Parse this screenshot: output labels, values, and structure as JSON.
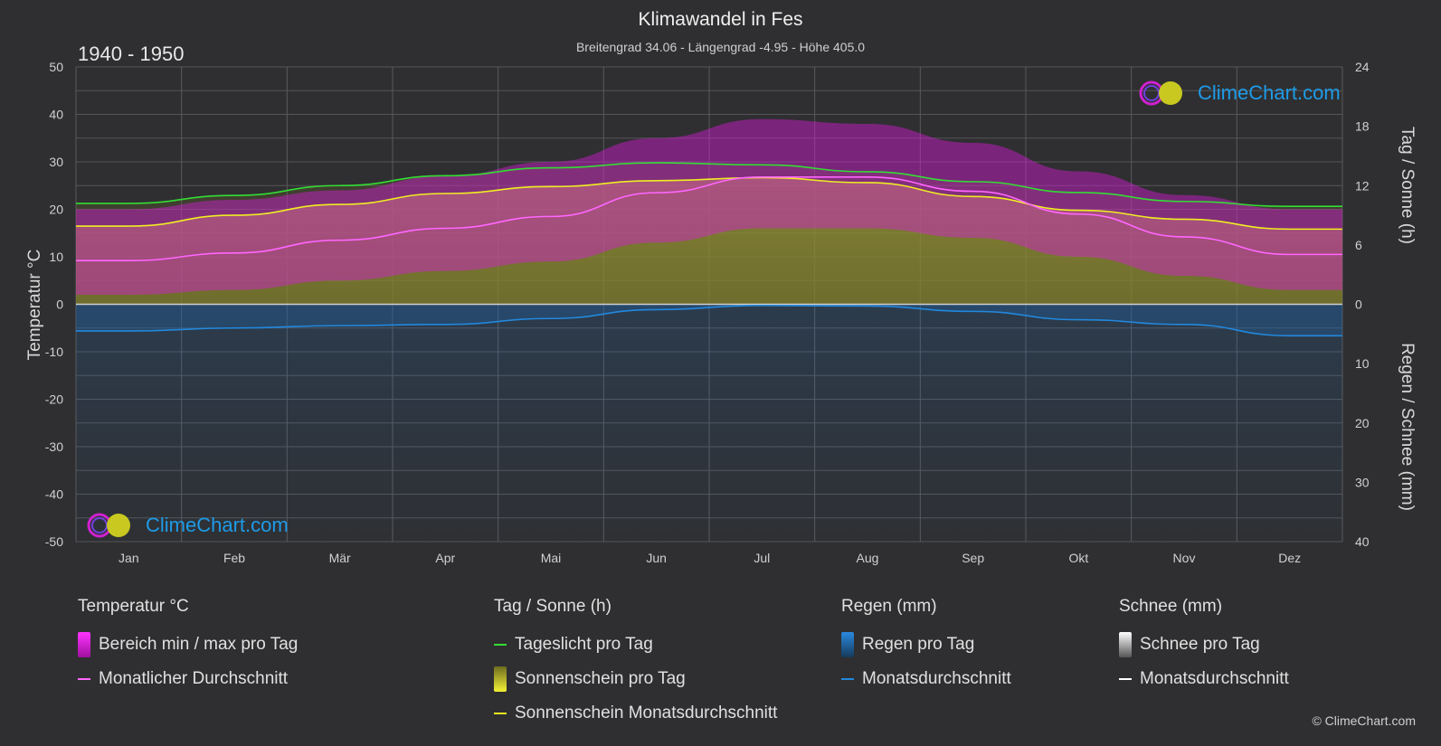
{
  "header": {
    "title": "Klimawandel in Fes",
    "subtitle": "Breitengrad 34.06 - Längengrad -4.95 - Höhe 405.0",
    "period": "1940 - 1950"
  },
  "logo_text": "ClimeChart.com",
  "copyright": "© ClimeChart.com",
  "colors": {
    "background": "#2f2f31",
    "temp_range": "#d81bd8",
    "temp_avg": "#ff66ff",
    "daylight": "#33dd33",
    "sunshine_fill": "#a8a832",
    "sunshine_avg": "#eeee22",
    "rain": "#1f7fd6",
    "rain_avg": "#2288dd",
    "snow": "#dddddd",
    "snow_avg": "#ffffff",
    "logo": "#1e9be8"
  },
  "chart_data": {
    "type": "line",
    "categories": [
      "Jan",
      "Feb",
      "Mär",
      "Apr",
      "Mai",
      "Jun",
      "Jul",
      "Aug",
      "Sep",
      "Okt",
      "Nov",
      "Dez"
    ],
    "left_axis": {
      "label": "Temperatur °C",
      "ylim": [
        -50,
        50
      ],
      "ticks": [
        50,
        40,
        30,
        20,
        10,
        0,
        -10,
        -20,
        -30,
        -40,
        -50
      ]
    },
    "right_axis_top": {
      "label": "Tag / Sonne (h)",
      "ylim": [
        0,
        24
      ],
      "ticks": [
        24,
        18,
        12,
        6,
        0
      ]
    },
    "right_axis_bottom": {
      "label": "Regen / Schnee (mm)",
      "ylim": [
        0,
        40
      ],
      "ticks": [
        10,
        20,
        30,
        40
      ]
    },
    "grid": true,
    "series": [
      {
        "name": "Monatlicher Durchschnitt",
        "unit": "°C",
        "values": [
          9.2,
          10.8,
          13.5,
          16.0,
          18.5,
          23.5,
          26.8,
          26.8,
          23.8,
          19.0,
          14.2,
          10.5
        ]
      },
      {
        "name": "Tageslicht pro Tag",
        "unit": "h",
        "values": [
          10.2,
          11.0,
          12.0,
          13.0,
          13.8,
          14.3,
          14.1,
          13.4,
          12.4,
          11.3,
          10.4,
          9.9
        ]
      },
      {
        "name": "Sonnenschein Monatsdurchschnitt",
        "unit": "h",
        "values": [
          7.9,
          9.0,
          10.1,
          11.2,
          11.9,
          12.5,
          12.8,
          12.3,
          10.9,
          9.5,
          8.6,
          7.6
        ]
      },
      {
        "name": "Monatsdurchschnitt Regen",
        "unit": "mm",
        "values": [
          4.5,
          4.0,
          3.6,
          3.4,
          2.4,
          0.9,
          0.2,
          0.3,
          1.2,
          2.6,
          3.4,
          5.3
        ]
      },
      {
        "name": "Bereich max",
        "unit": "°C",
        "values": [
          20,
          22,
          24,
          27,
          30,
          35,
          39,
          38,
          34,
          28,
          23,
          20
        ]
      },
      {
        "name": "Bereich min",
        "unit": "°C",
        "values": [
          2,
          3,
          5,
          7,
          9,
          13,
          16,
          16,
          14,
          10,
          6,
          3
        ]
      }
    ]
  },
  "legend": {
    "temp": {
      "title": "Temperatur °C",
      "items": [
        "Bereich min / max pro Tag",
        "Monatlicher Durchschnitt"
      ]
    },
    "sun": {
      "title": "Tag / Sonne (h)",
      "items": [
        "Tageslicht pro Tag",
        "Sonnenschein pro Tag",
        "Sonnenschein Monatsdurchschnitt"
      ]
    },
    "rain": {
      "title": "Regen (mm)",
      "items": [
        "Regen pro Tag",
        "Monatsdurchschnitt"
      ]
    },
    "snow": {
      "title": "Schnee (mm)",
      "items": [
        "Schnee pro Tag",
        "Monatsdurchschnitt"
      ]
    }
  }
}
